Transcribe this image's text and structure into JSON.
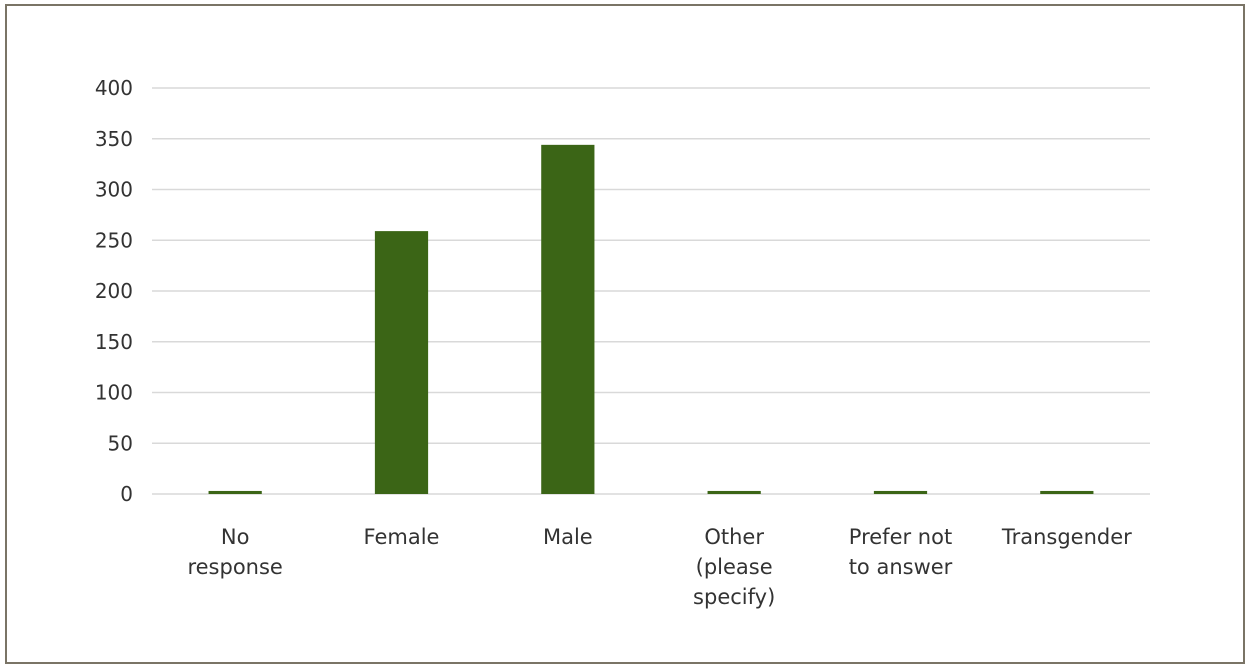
{
  "chart_data": {
    "type": "bar",
    "title": "",
    "xlabel": "",
    "ylabel": "",
    "categories": [
      [
        "No",
        "response"
      ],
      [
        "Female"
      ],
      [
        "Male"
      ],
      [
        "Other",
        "(please",
        "specify)"
      ],
      [
        "Prefer not",
        "to answer"
      ],
      [
        "Transgender"
      ]
    ],
    "values": [
      3,
      259,
      344,
      3,
      3,
      3
    ],
    "ylim": [
      0,
      400
    ],
    "yticks": [
      0,
      50,
      100,
      150,
      200,
      250,
      300,
      350,
      400
    ],
    "grid": true,
    "legend": "none",
    "colors": {
      "bar": "#3b6516",
      "grid": "#d9d9d9",
      "frame": "#7a7466",
      "text": "#333333"
    }
  }
}
